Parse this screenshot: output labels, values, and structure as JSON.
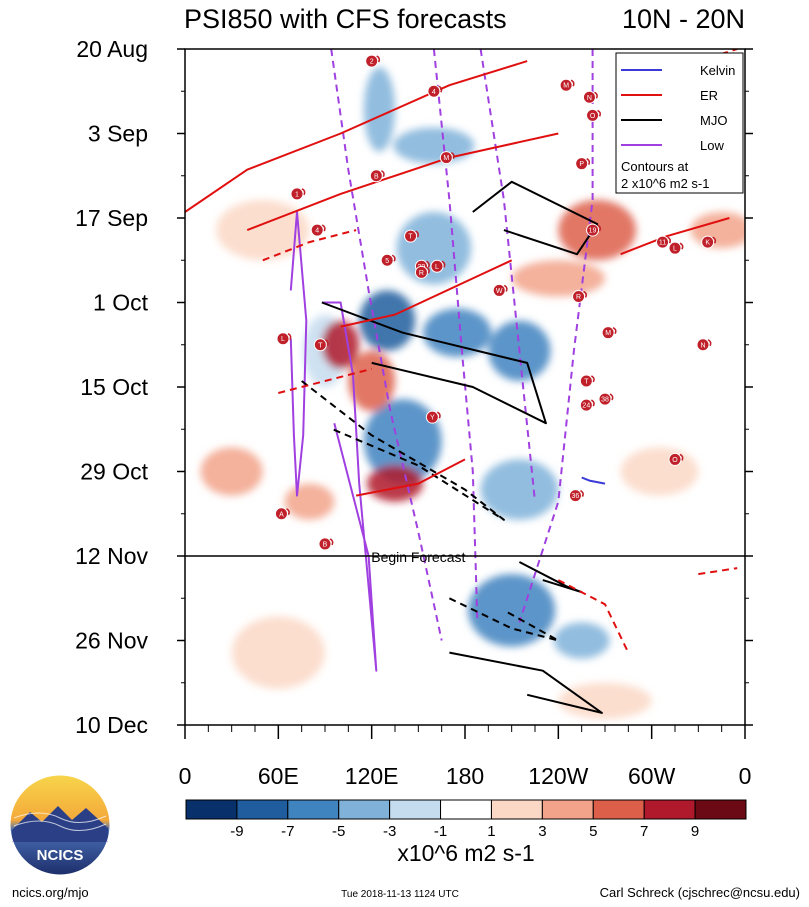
{
  "header": {
    "title": "PSI850 with CFS forecasts",
    "region": "10N - 20N"
  },
  "chart_data": {
    "type": "heatmap",
    "title": "PSI850 with CFS forecasts",
    "region": "10N - 20N",
    "x_axis": {
      "ticks": [
        {
          "lon": 0,
          "label": "0"
        },
        {
          "lon": 60,
          "label": "60E"
        },
        {
          "lon": 120,
          "label": "120E"
        },
        {
          "lon": 180,
          "label": "180"
        },
        {
          "lon": 240,
          "label": "120W"
        },
        {
          "lon": 300,
          "label": "60W"
        },
        {
          "lon": 360,
          "label": "0"
        }
      ],
      "range": [
        0,
        360
      ],
      "minor_step": 15
    },
    "y_axis": {
      "ticks": [
        {
          "day": 0,
          "label": "20 Aug"
        },
        {
          "day": 14,
          "label": "3 Sep"
        },
        {
          "day": 28,
          "label": "17 Sep"
        },
        {
          "day": 42,
          "label": "1 Oct"
        },
        {
          "day": 56,
          "label": "15 Oct"
        },
        {
          "day": 70,
          "label": "29 Oct"
        },
        {
          "day": 84,
          "label": "12 Nov"
        },
        {
          "day": 98,
          "label": "26 Nov"
        },
        {
          "day": 112,
          "label": "10 Dec"
        }
      ],
      "range": [
        0,
        112
      ],
      "orientation": "time increases downward"
    },
    "forecast_start": {
      "day": 84,
      "label": "Begin Forecast"
    },
    "colorbar": {
      "labels": [
        "-9",
        "-7",
        "-5",
        "-3",
        "-1",
        "1",
        "3",
        "5",
        "7",
        "9"
      ],
      "colors": [
        "#08306b",
        "#1f5d9e",
        "#3f83bf",
        "#7fb1d9",
        "#c5dcee",
        "#ffffff",
        "#fbd8c6",
        "#f2a38a",
        "#dd5f4a",
        "#b0182c",
        "#6b0a14"
      ],
      "unit_label": "x10^6 m2 s-1"
    },
    "legend": {
      "position": "top-right",
      "entries": [
        {
          "name": "Kelvin",
          "color": "#3a3ad6"
        },
        {
          "name": "ER",
          "color": "#e01010"
        },
        {
          "name": "MJO",
          "color": "#000000"
        },
        {
          "name": "Low",
          "color": "#a040e0"
        }
      ],
      "note_line1": "Contours at",
      "note_line2": "2 x10^6 m2 s-1"
    },
    "anomaly_patches": [
      {
        "lon": 130,
        "day": 45,
        "rlon": 18,
        "rday": 5,
        "v": -8
      },
      {
        "lon": 175,
        "day": 47,
        "rlon": 22,
        "rday": 4,
        "v": -7
      },
      {
        "lon": 215,
        "day": 50,
        "rlon": 20,
        "rday": 5,
        "v": -6
      },
      {
        "lon": 160,
        "day": 33,
        "rlon": 24,
        "rday": 6,
        "v": -5
      },
      {
        "lon": 125,
        "day": 10,
        "rlon": 10,
        "rday": 7,
        "v": -4
      },
      {
        "lon": 160,
        "day": 16,
        "rlon": 26,
        "rday": 3,
        "v": -5
      },
      {
        "lon": 140,
        "day": 65,
        "rlon": 25,
        "rday": 7,
        "v": -7
      },
      {
        "lon": 215,
        "day": 73,
        "rlon": 25,
        "rday": 5,
        "v": -5
      },
      {
        "lon": 210,
        "day": 93,
        "rlon": 28,
        "rday": 6,
        "v": -6
      },
      {
        "lon": 255,
        "day": 98,
        "rlon": 18,
        "rday": 3,
        "v": -4
      },
      {
        "lon": 90,
        "day": 50,
        "rlon": 14,
        "rday": 6,
        "v": -3
      },
      {
        "lon": 100,
        "day": 49,
        "rlon": 12,
        "rday": 4,
        "v": 7
      },
      {
        "lon": 120,
        "day": 55,
        "rlon": 15,
        "rday": 5,
        "v": 5
      },
      {
        "lon": 135,
        "day": 72,
        "rlon": 18,
        "rday": 3,
        "v": 7
      },
      {
        "lon": 80,
        "day": 75,
        "rlon": 16,
        "rday": 3,
        "v": 4
      },
      {
        "lon": 265,
        "day": 30,
        "rlon": 25,
        "rday": 5,
        "v": 5
      },
      {
        "lon": 345,
        "day": 30,
        "rlon": 20,
        "rday": 3,
        "v": 4
      },
      {
        "lon": 30,
        "day": 70,
        "rlon": 20,
        "rday": 4,
        "v": 3
      },
      {
        "lon": 240,
        "day": 38,
        "rlon": 30,
        "rday": 3,
        "v": 3
      },
      {
        "lon": 305,
        "day": 70,
        "rlon": 25,
        "rday": 4,
        "v": 2
      },
      {
        "lon": 50,
        "day": 30,
        "rlon": 30,
        "rday": 5,
        "v": 2
      },
      {
        "lon": 270,
        "day": 108,
        "rlon": 30,
        "rday": 3,
        "v": 2
      },
      {
        "lon": 60,
        "day": 100,
        "rlon": 30,
        "rday": 6,
        "v": 1
      },
      {
        "lon": 315,
        "day": 45,
        "rlon": 22,
        "rday": 6,
        "v": -1
      },
      {
        "lon": 40,
        "day": 55,
        "rlon": 30,
        "rday": 8,
        "v": -1
      }
    ],
    "contours": [
      {
        "type": "Low",
        "dash": false,
        "points": [
          [
            68,
            40
          ],
          [
            72,
            27
          ],
          [
            78,
            45
          ],
          [
            76,
            64
          ],
          [
            72,
            74
          ],
          [
            70,
            64
          ],
          [
            68,
            48
          ]
        ]
      },
      {
        "type": "Low",
        "dash": false,
        "points": [
          [
            88,
            42
          ],
          [
            100,
            42
          ],
          [
            108,
            54
          ],
          [
            112,
            72
          ],
          [
            123,
            103
          ],
          [
            118,
            84
          ],
          [
            106,
            72
          ],
          [
            96,
            62
          ]
        ]
      },
      {
        "type": "Low",
        "dash": true,
        "points": [
          [
            94,
            0
          ],
          [
            105,
            20
          ],
          [
            118,
            40
          ],
          [
            132,
            60
          ],
          [
            150,
            80
          ],
          [
            165,
            98
          ]
        ]
      },
      {
        "type": "Low",
        "dash": true,
        "points": [
          [
            160,
            0
          ],
          [
            170,
            25
          ],
          [
            178,
            50
          ],
          [
            185,
            70
          ],
          [
            188,
            95
          ]
        ]
      },
      {
        "type": "Low",
        "dash": true,
        "points": [
          [
            190,
            0
          ],
          [
            205,
            25
          ],
          [
            215,
            50
          ],
          [
            225,
            75
          ]
        ]
      },
      {
        "type": "Low",
        "dash": true,
        "points": [
          [
            262,
            0
          ],
          [
            262,
            25
          ],
          [
            250,
            50
          ],
          [
            240,
            75
          ],
          [
            215,
            95
          ]
        ]
      },
      {
        "type": "MJO",
        "dash": false,
        "points": [
          [
            185,
            27
          ],
          [
            210,
            22
          ],
          [
            265,
            29
          ],
          [
            252,
            34
          ],
          [
            205,
            30
          ]
        ]
      },
      {
        "type": "MJO",
        "dash": false,
        "points": [
          [
            88,
            42
          ],
          [
            140,
            47
          ],
          [
            220,
            52
          ],
          [
            232,
            62
          ],
          [
            185,
            56
          ],
          [
            120,
            52
          ]
        ]
      },
      {
        "type": "MJO",
        "dash": true,
        "points": [
          [
            75,
            55
          ],
          [
            120,
            64
          ],
          [
            180,
            73
          ],
          [
            205,
            78
          ],
          [
            150,
            69
          ],
          [
            95,
            63
          ]
        ]
      },
      {
        "type": "MJO",
        "dash": true,
        "points": [
          [
            170,
            91
          ],
          [
            210,
            96
          ],
          [
            240,
            98
          ],
          [
            205,
            93
          ]
        ]
      },
      {
        "type": "MJO",
        "dash": false,
        "points": [
          [
            170,
            100
          ],
          [
            230,
            103
          ],
          [
            268,
            110
          ],
          [
            220,
            107
          ]
        ]
      },
      {
        "type": "MJO",
        "dash": false,
        "points": [
          [
            215,
            85
          ],
          [
            245,
            89
          ],
          [
            255,
            90
          ],
          [
            230,
            88
          ]
        ]
      },
      {
        "type": "ER",
        "dash": false,
        "points": [
          [
            0,
            27
          ],
          [
            40,
            20
          ],
          [
            100,
            14
          ],
          [
            170,
            6
          ],
          [
            220,
            2
          ]
        ]
      },
      {
        "type": "ER",
        "dash": false,
        "points": [
          [
            40,
            30
          ],
          [
            100,
            24
          ],
          [
            170,
            18
          ],
          [
            240,
            14
          ]
        ]
      },
      {
        "type": "ER",
        "dash": false,
        "points": [
          [
            100,
            46
          ],
          [
            135,
            44
          ],
          [
            185,
            38
          ],
          [
            210,
            35
          ]
        ]
      },
      {
        "type": "ER",
        "dash": false,
        "points": [
          [
            110,
            74
          ],
          [
            150,
            72
          ],
          [
            180,
            68
          ]
        ]
      },
      {
        "type": "ER",
        "dash": true,
        "points": [
          [
            50,
            35
          ],
          [
            80,
            32
          ],
          [
            110,
            30
          ]
        ]
      },
      {
        "type": "ER",
        "dash": true,
        "points": [
          [
            60,
            57
          ],
          [
            90,
            55
          ],
          [
            120,
            53
          ]
        ]
      },
      {
        "type": "ER",
        "dash": true,
        "points": [
          [
            240,
            88
          ],
          [
            270,
            92
          ],
          [
            285,
            100
          ]
        ]
      },
      {
        "type": "ER",
        "dash": true,
        "points": [
          [
            300,
            4
          ],
          [
            330,
            2
          ],
          [
            355,
            0
          ]
        ]
      },
      {
        "type": "ER",
        "dash": false,
        "points": [
          [
            280,
            34
          ],
          [
            310,
            31
          ],
          [
            350,
            28
          ]
        ]
      },
      {
        "type": "ER",
        "dash": true,
        "points": [
          [
            330,
            87
          ],
          [
            355,
            86
          ]
        ]
      },
      {
        "type": "Kelvin",
        "dash": false,
        "points": [
          [
            255,
            71
          ],
          [
            260,
            71.5
          ],
          [
            270,
            72
          ]
        ]
      }
    ],
    "storm_markers": [
      {
        "lon": 120,
        "day": 2,
        "label": "2"
      },
      {
        "lon": 160,
        "day": 7,
        "label": "4"
      },
      {
        "lon": 245,
        "day": 6,
        "label": "M"
      },
      {
        "lon": 260,
        "day": 8,
        "label": "N"
      },
      {
        "lon": 262,
        "day": 11,
        "label": "O"
      },
      {
        "lon": 168,
        "day": 18,
        "label": "M"
      },
      {
        "lon": 123,
        "day": 21,
        "label": "B"
      },
      {
        "lon": 255,
        "day": 19,
        "label": "P"
      },
      {
        "lon": 72,
        "day": 24,
        "label": "1"
      },
      {
        "lon": 85,
        "day": 30,
        "label": "4"
      },
      {
        "lon": 145,
        "day": 31,
        "label": "T"
      },
      {
        "lon": 262,
        "day": 30,
        "label": "19"
      },
      {
        "lon": 307,
        "day": 32,
        "label": "11"
      },
      {
        "lon": 315,
        "day": 33,
        "label": "L"
      },
      {
        "lon": 336,
        "day": 32,
        "label": "K"
      },
      {
        "lon": 130,
        "day": 35,
        "label": "5"
      },
      {
        "lon": 152,
        "day": 36,
        "label": "29"
      },
      {
        "lon": 162,
        "day": 36,
        "label": "L"
      },
      {
        "lon": 152,
        "day": 37,
        "label": "R"
      },
      {
        "lon": 202,
        "day": 40,
        "label": "W"
      },
      {
        "lon": 253,
        "day": 41,
        "label": "R"
      },
      {
        "lon": 63,
        "day": 48,
        "label": "L"
      },
      {
        "lon": 87,
        "day": 49,
        "label": "T"
      },
      {
        "lon": 272,
        "day": 47,
        "label": "M"
      },
      {
        "lon": 333,
        "day": 49,
        "label": "N"
      },
      {
        "lon": 258,
        "day": 55,
        "label": "T"
      },
      {
        "lon": 258,
        "day": 59,
        "label": "24"
      },
      {
        "lon": 270,
        "day": 58,
        "label": "38"
      },
      {
        "lon": 159,
        "day": 61,
        "label": "Y"
      },
      {
        "lon": 315,
        "day": 68,
        "label": "O"
      },
      {
        "lon": 62,
        "day": 77,
        "label": "A"
      },
      {
        "lon": 251,
        "day": 74,
        "label": "36"
      },
      {
        "lon": 90,
        "day": 82,
        "label": "B"
      }
    ]
  },
  "footer": {
    "logo_text": "NCICS",
    "url": "ncics.org/mjo",
    "timestamp": "Tue 2018-11-13 1124 UTC",
    "author": "Carl Schreck (cjschrec@ncsu.edu)"
  }
}
